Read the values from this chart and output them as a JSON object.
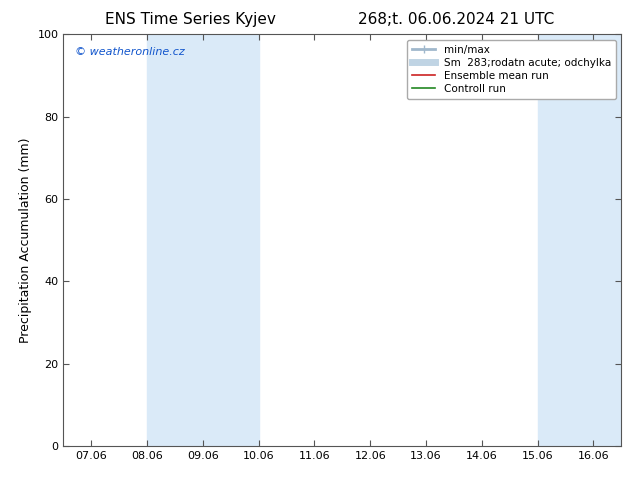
{
  "title_left": "ENS Time Series Kyjev",
  "title_right": "268;t. 06.06.2024 21 UTC",
  "ylabel": "Precipitation Accumulation (mm)",
  "ylim": [
    0,
    100
  ],
  "yticks": [
    0,
    20,
    40,
    60,
    80,
    100
  ],
  "xtick_labels": [
    "07.06",
    "08.06",
    "09.06",
    "10.06",
    "11.06",
    "12.06",
    "13.06",
    "14.06",
    "15.06",
    "16.06"
  ],
  "watermark": "© weatheronline.cz",
  "bg_color": "#ffffff",
  "plot_bg_color": "#ffffff",
  "band_color": "#daeaf8",
  "band_xranges": [
    [
      1.0,
      3.0
    ],
    [
      8.0,
      9.5
    ]
  ],
  "figsize": [
    6.34,
    4.9
  ],
  "dpi": 100,
  "title_fontsize": 11,
  "tick_fontsize": 8,
  "ylabel_fontsize": 9,
  "watermark_fontsize": 8,
  "legend_fontsize": 7.5,
  "minmax_color": "#a0b8cc",
  "std_color": "#c0d4e4",
  "mean_color": "#cc2222",
  "ctrl_color": "#228822"
}
